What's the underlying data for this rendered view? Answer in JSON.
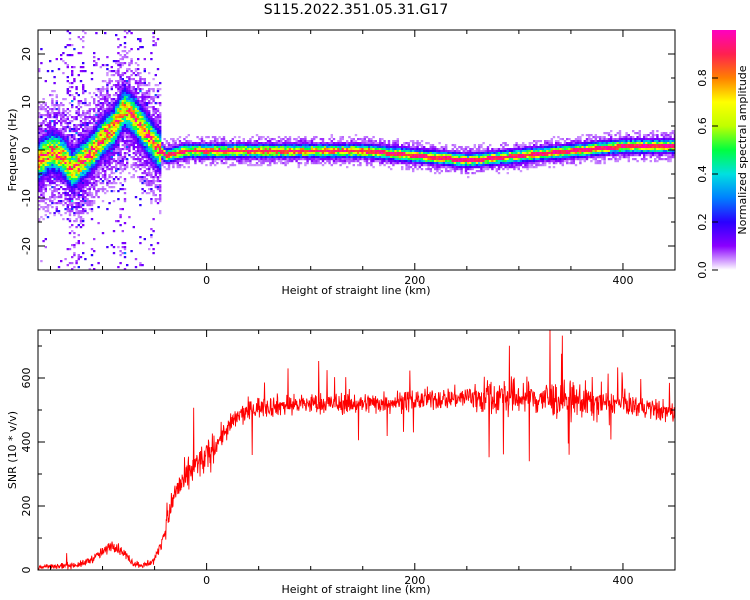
{
  "title": "S115.2022.351.05.31.G17",
  "chart_data": [
    {
      "type": "heatmap",
      "xlabel": "Height of straight line (km)",
      "ylabel": "Frequency (Hz)",
      "xlim": [
        -162,
        450
      ],
      "ylim": [
        -25,
        25
      ],
      "xticks": [
        0,
        200,
        400
      ],
      "yticks": [
        -20,
        -10,
        0,
        10,
        20
      ],
      "colorbar": {
        "label": "Normalized spectral amplitude",
        "range": [
          0.0,
          1.0
        ],
        "ticks": [
          "0.0",
          "0.2",
          "0.4",
          "0.6",
          "0.8"
        ],
        "tick_values": [
          0.0,
          0.2,
          0.4,
          0.6,
          0.8
        ],
        "colors": [
          "#ffffff",
          "#8a00ff",
          "#2a00ff",
          "#0080ff",
          "#00e0e0",
          "#00ff40",
          "#c0ff00",
          "#ffff00",
          "#ff8000",
          "#ff2050",
          "#ff00c0"
        ],
        "placement": "right"
      },
      "ridge": {
        "x": [
          -162,
          -150,
          -140,
          -130,
          -120,
          -110,
          -100,
          -90,
          -80,
          -70,
          -60,
          -50,
          -40,
          -20,
          0,
          50,
          100,
          150,
          200,
          250,
          300,
          350,
          400,
          450
        ],
        "freq": [
          -2,
          0,
          -1,
          -4,
          -2,
          0,
          3,
          5,
          9,
          7,
          4,
          1,
          -1,
          0,
          0,
          0,
          0,
          0,
          -1,
          -2,
          -1,
          0,
          1,
          1
        ]
      },
      "grid": false
    },
    {
      "type": "line",
      "xlabel": "Height of straight line (km)",
      "ylabel": "SNR (10 * v/v)",
      "xlim": [
        -162,
        450
      ],
      "ylim": [
        0,
        750
      ],
      "xticks": [
        0,
        200,
        400
      ],
      "yticks": [
        0,
        200,
        400,
        600
      ],
      "series": [
        {
          "color": "#ff0000",
          "x": [
            -162,
            -140,
            -120,
            -110,
            -100,
            -90,
            -80,
            -70,
            -60,
            -50,
            -40,
            -30,
            -20,
            -10,
            0,
            10,
            20,
            30,
            50,
            100,
            150,
            200,
            250,
            300,
            350,
            400,
            450
          ],
          "y": [
            10,
            12,
            18,
            35,
            55,
            80,
            55,
            20,
            15,
            30,
            120,
            250,
            280,
            330,
            350,
            400,
            440,
            480,
            510,
            520,
            520,
            530,
            540,
            540,
            530,
            520,
            490
          ]
        }
      ],
      "grid": false
    }
  ]
}
